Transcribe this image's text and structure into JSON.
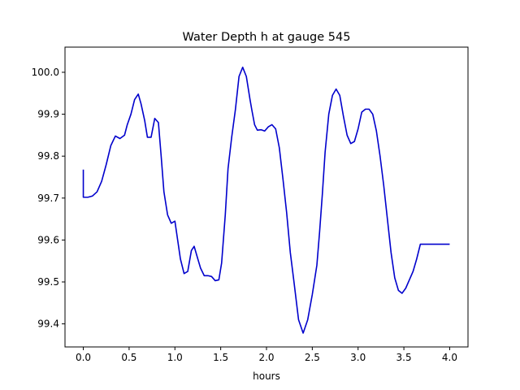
{
  "chart_data": {
    "type": "line",
    "title": "Water Depth h at gauge 545",
    "xlabel": "hours",
    "ylabel": "",
    "xlim": [
      -0.2,
      4.2
    ],
    "ylim": [
      99.345,
      100.06
    ],
    "xticks": [
      0.0,
      0.5,
      1.0,
      1.5,
      2.0,
      2.5,
      3.0,
      3.5,
      4.0
    ],
    "xtick_labels": [
      "0.0",
      "0.5",
      "1.0",
      "1.5",
      "2.0",
      "2.5",
      "3.0",
      "3.5",
      "4.0"
    ],
    "yticks": [
      99.4,
      99.5,
      99.6,
      99.7,
      99.8,
      99.9,
      100.0
    ],
    "ytick_labels": [
      "99.4",
      "99.5",
      "99.6",
      "99.7",
      "99.8",
      "99.9",
      "100.0"
    ],
    "grid": false,
    "series": [
      {
        "color": "#0000cc",
        "x": [
          0.0,
          0.0,
          0.05,
          0.1,
          0.15,
          0.2,
          0.25,
          0.3,
          0.35,
          0.4,
          0.45,
          0.48,
          0.52,
          0.56,
          0.6,
          0.63,
          0.67,
          0.7,
          0.74,
          0.78,
          0.82,
          0.85,
          0.88,
          0.92,
          0.96,
          1.0,
          1.03,
          1.06,
          1.1,
          1.14,
          1.18,
          1.21,
          1.25,
          1.28,
          1.32,
          1.36,
          1.4,
          1.44,
          1.48,
          1.51,
          1.55,
          1.58,
          1.62,
          1.66,
          1.7,
          1.74,
          1.78,
          1.82,
          1.84,
          1.87,
          1.9,
          1.94,
          1.98,
          2.02,
          2.06,
          2.1,
          2.14,
          2.18,
          2.22,
          2.26,
          2.3,
          2.35,
          2.4,
          2.45,
          2.5,
          2.55,
          2.58,
          2.61,
          2.64,
          2.68,
          2.72,
          2.76,
          2.8,
          2.84,
          2.88,
          2.92,
          2.96,
          3.0,
          3.04,
          3.08,
          3.12,
          3.16,
          3.2,
          3.24,
          3.28,
          3.32,
          3.36,
          3.4,
          3.44,
          3.48,
          3.52,
          3.56,
          3.6,
          3.64,
          3.68,
          3.72,
          3.76,
          3.8,
          3.84,
          3.88,
          3.92,
          3.96,
          4.0
        ],
        "y": [
          99.768,
          99.702,
          99.702,
          99.705,
          99.715,
          99.74,
          99.78,
          99.825,
          99.848,
          99.842,
          99.85,
          99.875,
          99.9,
          99.935,
          99.948,
          99.925,
          99.885,
          99.845,
          99.845,
          99.89,
          99.88,
          99.8,
          99.715,
          99.66,
          99.64,
          99.645,
          99.6,
          99.555,
          99.52,
          99.525,
          99.575,
          99.585,
          99.555,
          99.533,
          99.515,
          99.515,
          99.513,
          99.503,
          99.505,
          99.545,
          99.66,
          99.77,
          99.845,
          99.91,
          99.99,
          100.012,
          99.99,
          99.935,
          99.91,
          99.875,
          99.862,
          99.863,
          99.86,
          99.87,
          99.875,
          99.865,
          99.82,
          99.745,
          99.665,
          99.57,
          99.5,
          99.41,
          99.378,
          99.41,
          99.47,
          99.54,
          99.62,
          99.71,
          99.81,
          99.9,
          99.945,
          99.96,
          99.945,
          99.895,
          99.85,
          99.83,
          99.835,
          99.865,
          99.905,
          99.912,
          99.912,
          99.9,
          99.86,
          99.8,
          99.73,
          99.65,
          99.57,
          99.51,
          99.48,
          99.473,
          99.485,
          99.505,
          99.525,
          99.555,
          99.59,
          99.59,
          99.59,
          99.59,
          99.59,
          99.59,
          99.59,
          99.59,
          99.59
        ]
      }
    ]
  }
}
